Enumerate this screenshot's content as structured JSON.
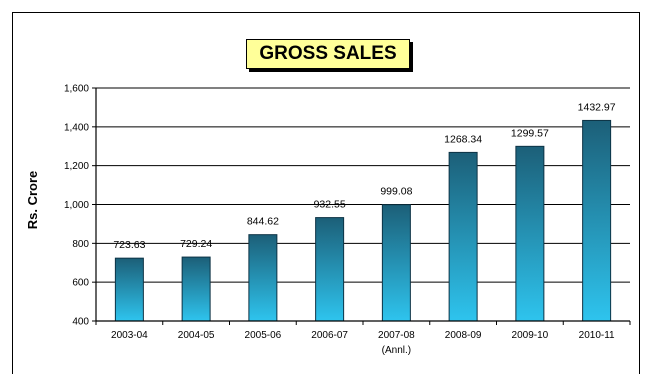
{
  "chart_data": {
    "type": "bar",
    "title": "GROSS SALES",
    "ylabel": "Rs. Crore",
    "xlabel": "",
    "categories": [
      "2003-04",
      "2004-05",
      "2005-06",
      "2006-07",
      "2007-08",
      "2008-09",
      "2009-10",
      "2010-11"
    ],
    "category_sublabels": [
      "",
      "",
      "",
      "",
      "(Annl.)",
      "",
      "",
      ""
    ],
    "values": [
      723.63,
      729.24,
      844.62,
      932.55,
      999.08,
      1268.34,
      1299.57,
      1432.97
    ],
    "value_labels": [
      "723.63",
      "729.24",
      "844.62",
      "932.55",
      "999.08",
      "1268.34",
      "1299.57",
      "1432.97"
    ],
    "ylim": [
      400,
      1600
    ],
    "yticks": [
      400,
      600,
      800,
      1000,
      1200,
      1400,
      1600
    ],
    "ytick_labels": [
      "400",
      "600",
      "800",
      "1,000",
      "1,200",
      "1,400",
      "1,600"
    ],
    "grid": true,
    "legend": "none",
    "colors": {
      "bar_top": "#1c5f78",
      "bar_bottom": "#2ec4ee",
      "grid": "#000000"
    }
  }
}
